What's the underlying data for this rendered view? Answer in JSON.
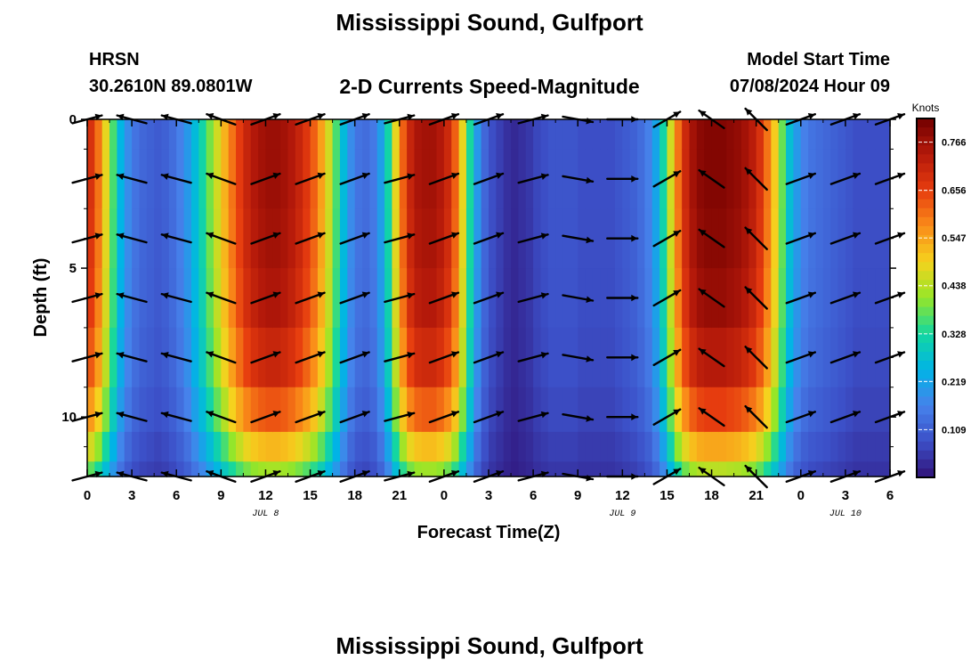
{
  "header": {
    "title": "Mississippi Sound, Gulfport",
    "station": "HRSN",
    "coords": "30.2610N  89.0801W",
    "subtitle": "2-D Currents Speed-Magnitude",
    "model_start_label": "Model Start Time",
    "model_start_value": "07/08/2024 Hour 09"
  },
  "footer": {
    "title": "Mississippi Sound, Gulfport"
  },
  "chart_data": {
    "type": "heatmap",
    "title": "2-D Currents Speed-Magnitude",
    "xlabel": "Forecast Time(Z)",
    "ylabel": "Depth (ft)",
    "x_ticks": [
      "0",
      "3",
      "6",
      "9",
      "12",
      "15",
      "18",
      "21",
      "0",
      "3",
      "6",
      "9",
      "12",
      "15",
      "18",
      "21",
      "0",
      "3",
      "6"
    ],
    "x_range": [
      0,
      54
    ],
    "date_labels": [
      {
        "label": "JUL 8",
        "hour": 12
      },
      {
        "label": "JUL 9",
        "hour": 36
      },
      {
        "label": "JUL 10",
        "hour": 51
      }
    ],
    "y_ticks": [
      0,
      5,
      10
    ],
    "y_range": [
      0,
      12
    ],
    "colorbar": {
      "label": "Knots",
      "ticks": [
        "0.766",
        "0.656",
        "0.547",
        "0.438",
        "0.328",
        "0.219",
        "0.109"
      ],
      "range": [
        0,
        0.82
      ]
    },
    "hours": [
      0,
      0.5,
      1,
      1.5,
      2,
      2.5,
      3,
      3.5,
      4,
      4.5,
      5,
      5.5,
      6,
      6.5,
      7,
      7.5,
      8,
      8.5,
      9,
      9.5,
      10,
      10.5,
      11,
      11.5,
      12,
      12.5,
      13,
      13.5,
      14,
      14.5,
      15,
      15.5,
      16,
      16.5,
      17,
      17.5,
      18,
      18.5,
      19,
      19.5,
      20,
      20.5,
      21,
      21.5,
      22,
      22.5,
      23,
      23.5,
      24,
      24.5,
      25,
      25.5,
      26,
      26.5,
      27,
      27.5,
      28,
      28.5,
      29,
      29.5,
      30,
      30.5,
      31,
      31.5,
      32,
      32.5,
      33,
      33.5,
      34,
      34.5,
      35,
      35.5,
      36,
      36.5,
      37,
      37.5,
      38,
      38.5,
      39,
      39.5,
      40,
      40.5,
      41,
      41.5,
      42,
      42.5,
      43,
      43.5,
      44,
      44.5,
      45,
      45.5,
      46,
      46.5,
      47,
      47.5,
      48,
      48.5,
      49,
      49.5,
      50,
      50.5,
      51,
      51.5,
      52,
      52.5,
      53,
      53.5
    ],
    "surface_speed": [
      0.68,
      0.6,
      0.48,
      0.36,
      0.25,
      0.18,
      0.14,
      0.12,
      0.11,
      0.1,
      0.11,
      0.13,
      0.16,
      0.2,
      0.26,
      0.32,
      0.39,
      0.46,
      0.53,
      0.6,
      0.66,
      0.71,
      0.74,
      0.76,
      0.77,
      0.77,
      0.76,
      0.74,
      0.71,
      0.67,
      0.62,
      0.55,
      0.46,
      0.36,
      0.26,
      0.18,
      0.14,
      0.13,
      0.15,
      0.21,
      0.32,
      0.48,
      0.62,
      0.71,
      0.75,
      0.76,
      0.76,
      0.74,
      0.7,
      0.62,
      0.48,
      0.33,
      0.2,
      0.12,
      0.08,
      0.06,
      0.04,
      0.03,
      0.04,
      0.05,
      0.07,
      0.08,
      0.09,
      0.09,
      0.09,
      0.09,
      0.08,
      0.08,
      0.08,
      0.08,
      0.08,
      0.09,
      0.1,
      0.11,
      0.13,
      0.16,
      0.22,
      0.32,
      0.46,
      0.6,
      0.7,
      0.76,
      0.79,
      0.8,
      0.8,
      0.8,
      0.79,
      0.78,
      0.76,
      0.73,
      0.68,
      0.6,
      0.5,
      0.38,
      0.27,
      0.2,
      0.16,
      0.14,
      0.13,
      0.12,
      0.11,
      0.1,
      0.09,
      0.08,
      0.08,
      0.08,
      0.08,
      0.08
    ],
    "profile": [
      {
        "depth": 0,
        "factor": 1.0
      },
      {
        "depth": 2,
        "factor": 1.0
      },
      {
        "depth": 4,
        "factor": 0.99
      },
      {
        "depth": 6,
        "factor": 0.97
      },
      {
        "depth": 8,
        "factor": 0.92
      },
      {
        "depth": 10,
        "factor": 0.82
      },
      {
        "depth": 11,
        "factor": 0.68
      },
      {
        "depth": 12,
        "factor": 0.55
      }
    ],
    "vectors": {
      "hours": [
        0,
        3,
        6,
        9,
        12,
        15,
        18,
        21,
        24,
        27,
        30,
        33,
        36,
        39,
        42,
        45,
        48,
        51,
        54
      ],
      "depths": [
        0,
        2,
        4,
        6,
        8,
        10,
        12
      ],
      "angles_deg": [
        15,
        165,
        165,
        160,
        20,
        20,
        20,
        15,
        20,
        20,
        15,
        -10,
        0,
        30,
        145,
        135,
        20,
        20,
        20
      ]
    }
  }
}
